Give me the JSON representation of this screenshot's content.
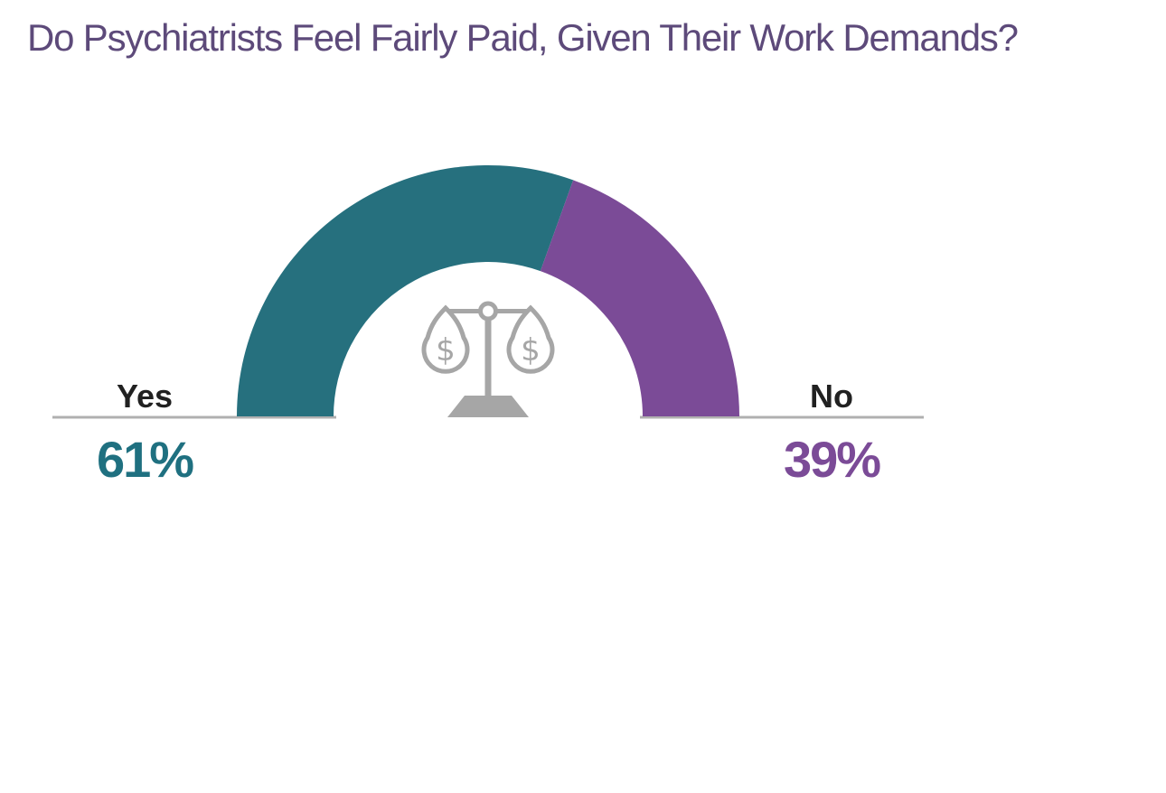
{
  "chart_data": {
    "type": "pie",
    "subtype": "half-donut-gauge",
    "title": "Do Psychiatrists Feel Fairly Paid, Given Their Work Demands?",
    "categories": [
      "Yes",
      "No"
    ],
    "values": [
      61,
      39
    ],
    "unit": "%",
    "value_labels": [
      "61%",
      "39%"
    ],
    "colors": [
      "#26707e",
      "#7b4b97"
    ],
    "start_angle_deg": 180,
    "end_angle_deg": 0,
    "legend": "none",
    "gridlines": "off",
    "center_icon": "balance-scale-with-dollar-signs",
    "center_icon_glyph": "$"
  },
  "style": {
    "title-color": "#5d4a7a",
    "teal": "#26707e",
    "purple": "#7b4b97",
    "teal-text": "#1f7080",
    "purple-text": "#7b4b97",
    "label-dark": "#212121",
    "line-gray": "#b0b0b0",
    "icon-gray": "#a6a6a6"
  }
}
